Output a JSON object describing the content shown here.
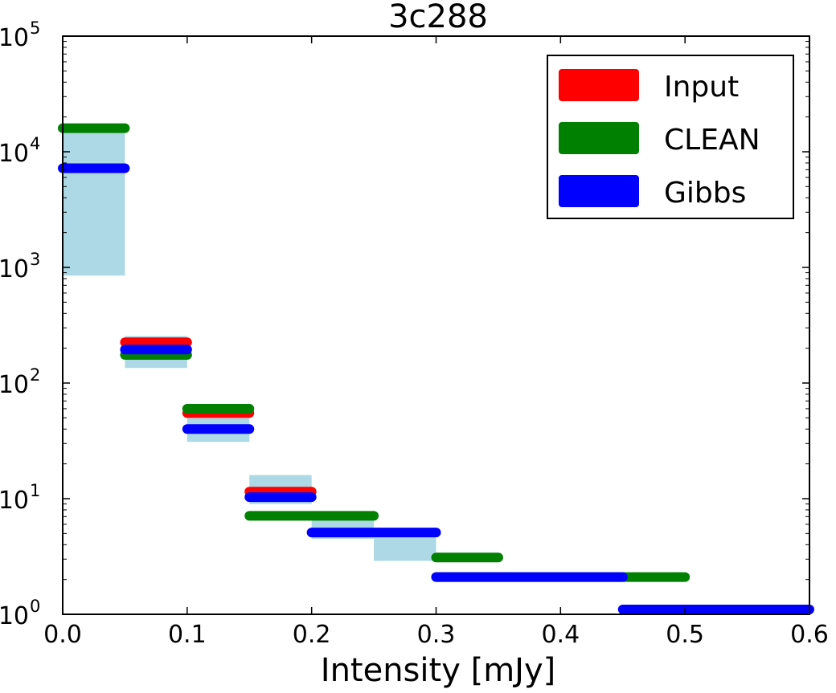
{
  "chart_data": {
    "type": "histogram-steps",
    "title": "3c288",
    "xlabel": "Intensity [mJy]",
    "ylabel": "",
    "xlim": [
      0.0,
      0.6
    ],
    "ylim": [
      1,
      100000
    ],
    "yscale": "log",
    "xticks": [
      0.0,
      0.1,
      0.2,
      0.3,
      0.4,
      0.5,
      0.6
    ],
    "xtick_labels": [
      "0.0",
      "0.1",
      "0.2",
      "0.3",
      "0.4",
      "0.5",
      "0.6"
    ],
    "yticks": [
      {
        "value": 1,
        "base": "10",
        "exp": "0"
      },
      {
        "value": 10,
        "base": "10",
        "exp": "1"
      },
      {
        "value": 100,
        "base": "10",
        "exp": "2"
      },
      {
        "value": 1000,
        "base": "10",
        "exp": "3"
      },
      {
        "value": 10000,
        "base": "10",
        "exp": "4"
      },
      {
        "value": 100000,
        "base": "10",
        "exp": "5"
      }
    ],
    "uncertainty_bands": {
      "color": "#add8e6",
      "bins": [
        {
          "x0": 0.0,
          "x1": 0.05,
          "ylo": 850,
          "yhi": 15500
        },
        {
          "x0": 0.05,
          "x1": 0.1,
          "ylo": 135,
          "yhi": 255
        },
        {
          "x0": 0.1,
          "x1": 0.15,
          "ylo": 31,
          "yhi": 62
        },
        {
          "x0": 0.15,
          "x1": 0.2,
          "ylo": 9,
          "yhi": 16
        },
        {
          "x0": 0.2,
          "x1": 0.25,
          "ylo": 4.5,
          "yhi": 6.8
        },
        {
          "x0": 0.25,
          "x1": 0.3,
          "ylo": 2.9,
          "yhi": 5.3
        }
      ]
    },
    "series": [
      {
        "name": "Input",
        "color": "#ff0000",
        "segments": [
          {
            "x0": 0.05,
            "x1": 0.1,
            "y": 225
          },
          {
            "x0": 0.1,
            "x1": 0.15,
            "y": 55
          },
          {
            "x0": 0.15,
            "x1": 0.2,
            "y": 11.5
          }
        ]
      },
      {
        "name": "CLEAN",
        "color": "#008000",
        "segments": [
          {
            "x0": 0.0,
            "x1": 0.05,
            "y": 16000
          },
          {
            "x0": 0.05,
            "x1": 0.1,
            "y": 175
          },
          {
            "x0": 0.1,
            "x1": 0.15,
            "y": 60
          },
          {
            "x0": 0.15,
            "x1": 0.25,
            "y": 7.1
          },
          {
            "x0": 0.3,
            "x1": 0.35,
            "y": 3.1
          },
          {
            "x0": 0.3,
            "x1": 0.5,
            "y": 2.1
          }
        ]
      },
      {
        "name": "Gibbs",
        "color": "#0000ff",
        "segments": [
          {
            "x0": 0.0,
            "x1": 0.05,
            "y": 7200
          },
          {
            "x0": 0.05,
            "x1": 0.1,
            "y": 195
          },
          {
            "x0": 0.1,
            "x1": 0.15,
            "y": 40
          },
          {
            "x0": 0.15,
            "x1": 0.2,
            "y": 10.3
          },
          {
            "x0": 0.2,
            "x1": 0.3,
            "y": 5.1
          },
          {
            "x0": 0.3,
            "x1": 0.45,
            "y": 2.1
          },
          {
            "x0": 0.45,
            "x1": 0.6,
            "y": 1.1
          }
        ]
      }
    ],
    "legend": {
      "position": "top-right",
      "entries": [
        "Input",
        "CLEAN",
        "Gibbs"
      ]
    }
  }
}
